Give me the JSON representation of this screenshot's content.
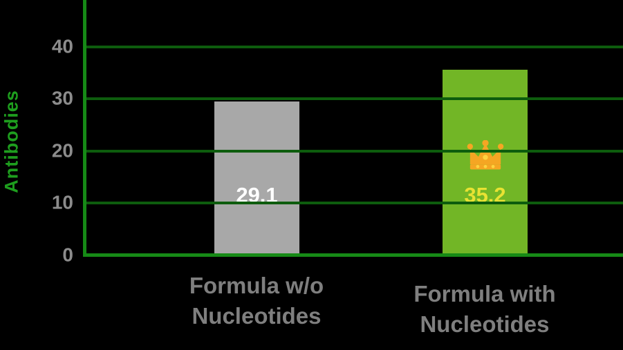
{
  "chart_data": {
    "type": "bar",
    "title": "",
    "ylabel": "Antibodies",
    "xlabel": "",
    "categories": [
      "Formula w/o Nucleotides",
      "Formula with Nucleotides"
    ],
    "values": [
      29.1,
      35.2
    ],
    "value_labels": [
      "29.1",
      "35.2"
    ],
    "yticks": [
      0,
      10,
      20,
      30,
      40
    ],
    "ylim": [
      0,
      48
    ],
    "grid": true,
    "legend": "none",
    "annotations": [
      "crown icon above value label on the 'Formula with Nucleotides' bar marking it as the winner"
    ],
    "colors": {
      "background": "#000000",
      "axis": "#168a16",
      "grid": "#0d5c0d",
      "axis_title": "#1e9e1e",
      "tick_labels": "#8c8c8c",
      "category_labels": "#7f7f7f",
      "bars": [
        "#a8a8a8",
        "#72b626"
      ],
      "value_labels": [
        "#ffffff",
        "#e8e233"
      ],
      "crown_body": "#f5a623",
      "crown_dots": "#ffd23f"
    }
  }
}
